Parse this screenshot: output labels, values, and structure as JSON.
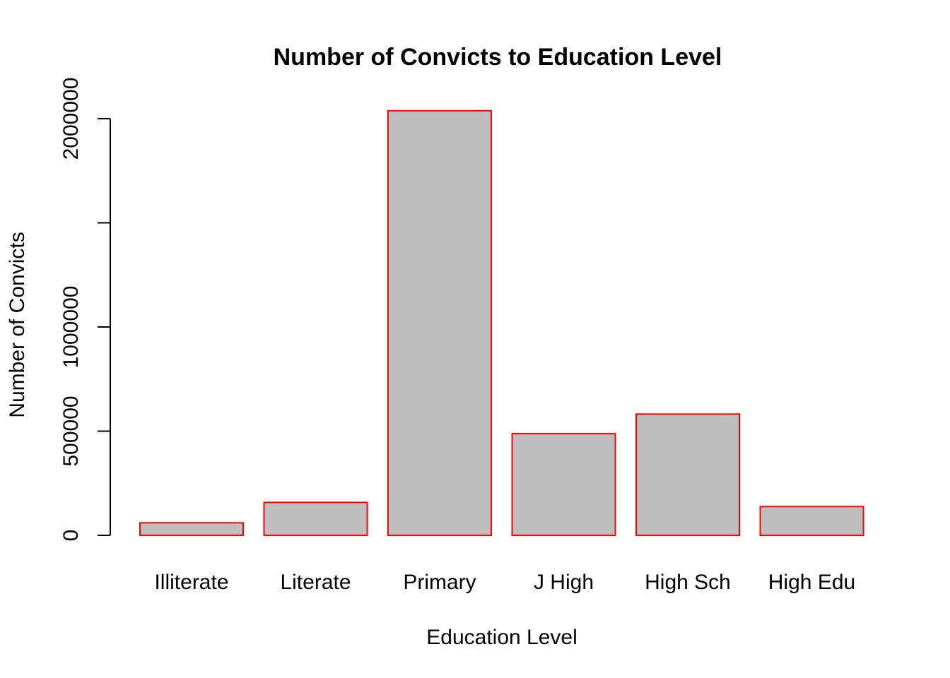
{
  "chart_data": {
    "type": "bar",
    "title": "Number of Convicts to Education Level",
    "xlabel": "Education Level",
    "ylabel": "Number of Convicts",
    "categories": [
      "Illiterate",
      "Literate",
      "Primary",
      "J High",
      "High Sch",
      "High Edu"
    ],
    "values": [
      60000,
      158000,
      2038000,
      488000,
      582000,
      138000
    ],
    "ylim": [
      0,
      2000000
    ],
    "yticks": [
      0,
      500000,
      1000000,
      1500000,
      2000000
    ],
    "ytick_labels": [
      "0",
      "500000",
      "1000000",
      "",
      "2000000"
    ],
    "grid": false,
    "legend": "none",
    "bar_fill": "#bebebe",
    "bar_border": "#ff0000",
    "axis_color": "#000000"
  }
}
